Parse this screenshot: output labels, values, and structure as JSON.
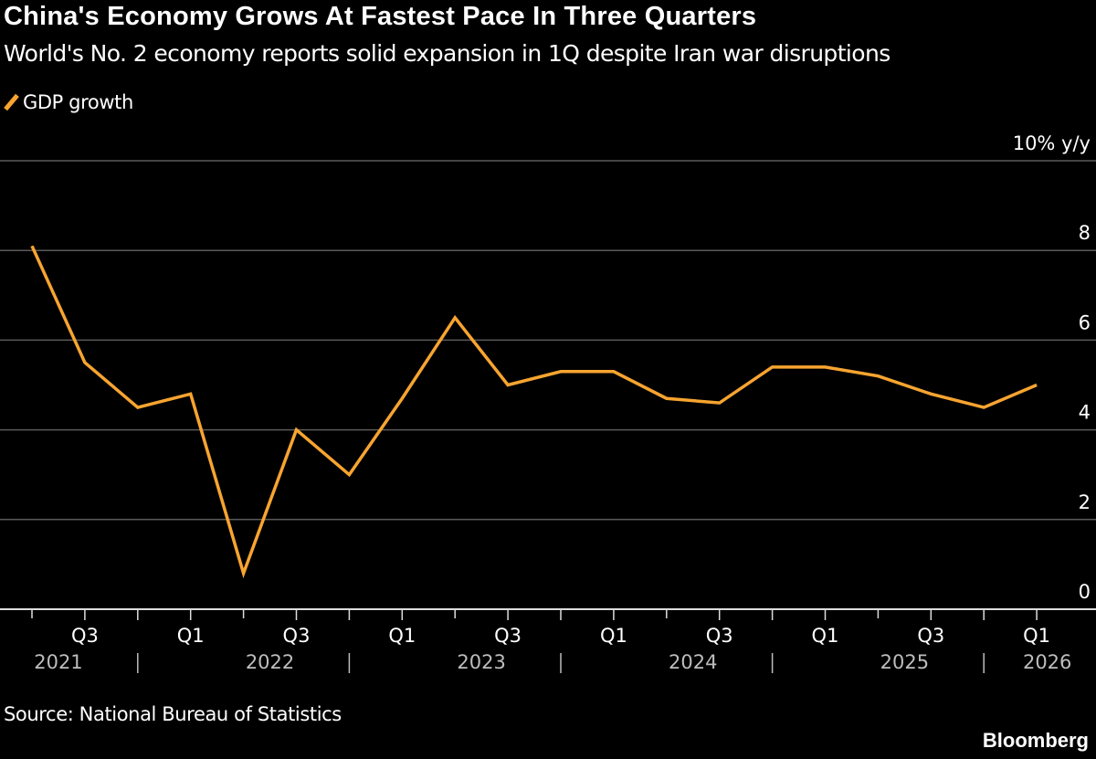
{
  "title": "China's Economy Grows At Fastest Pace In Three Quarters",
  "subtitle": "World's No. 2 economy reports solid expansion in 1Q despite Iran war disruptions",
  "source": "Source: National Bureau of Statistics",
  "brand": "Bloomberg",
  "chart_data": {
    "type": "line",
    "ylabel": "% y/y",
    "ylim": [
      0,
      10
    ],
    "yticks": [
      0,
      2,
      4,
      6,
      8,
      10
    ],
    "ytick_labels": [
      "0",
      "2",
      "4",
      "6",
      "8",
      "10% y/y"
    ],
    "grid": true,
    "legend": "top-left",
    "x": [
      "2021 Q2",
      "2021 Q3",
      "2021 Q4",
      "2022 Q1",
      "2022 Q2",
      "2022 Q3",
      "2022 Q4",
      "2023 Q1",
      "2023 Q2",
      "2023 Q3",
      "2023 Q4",
      "2024 Q1",
      "2024 Q2",
      "2024 Q3",
      "2024 Q4",
      "2025 Q1",
      "2025 Q2",
      "2025 Q3",
      "2025 Q4",
      "2026 Q1"
    ],
    "xtick_labels": [
      "Q3",
      "Q1",
      "Q3",
      "Q1",
      "Q3",
      "Q1",
      "Q3",
      "Q1",
      "Q3",
      "Q1"
    ],
    "year_labels": [
      "2021",
      "2022",
      "2023",
      "2024",
      "2025",
      "2026"
    ],
    "series": [
      {
        "name": "GDP growth",
        "color": "#f7a430",
        "values": [
          8.1,
          5.5,
          4.5,
          4.8,
          0.8,
          4.0,
          3.0,
          4.7,
          6.5,
          5.0,
          5.3,
          5.3,
          4.7,
          4.6,
          5.4,
          5.4,
          5.2,
          4.8,
          4.5,
          5.0
        ]
      }
    ]
  }
}
